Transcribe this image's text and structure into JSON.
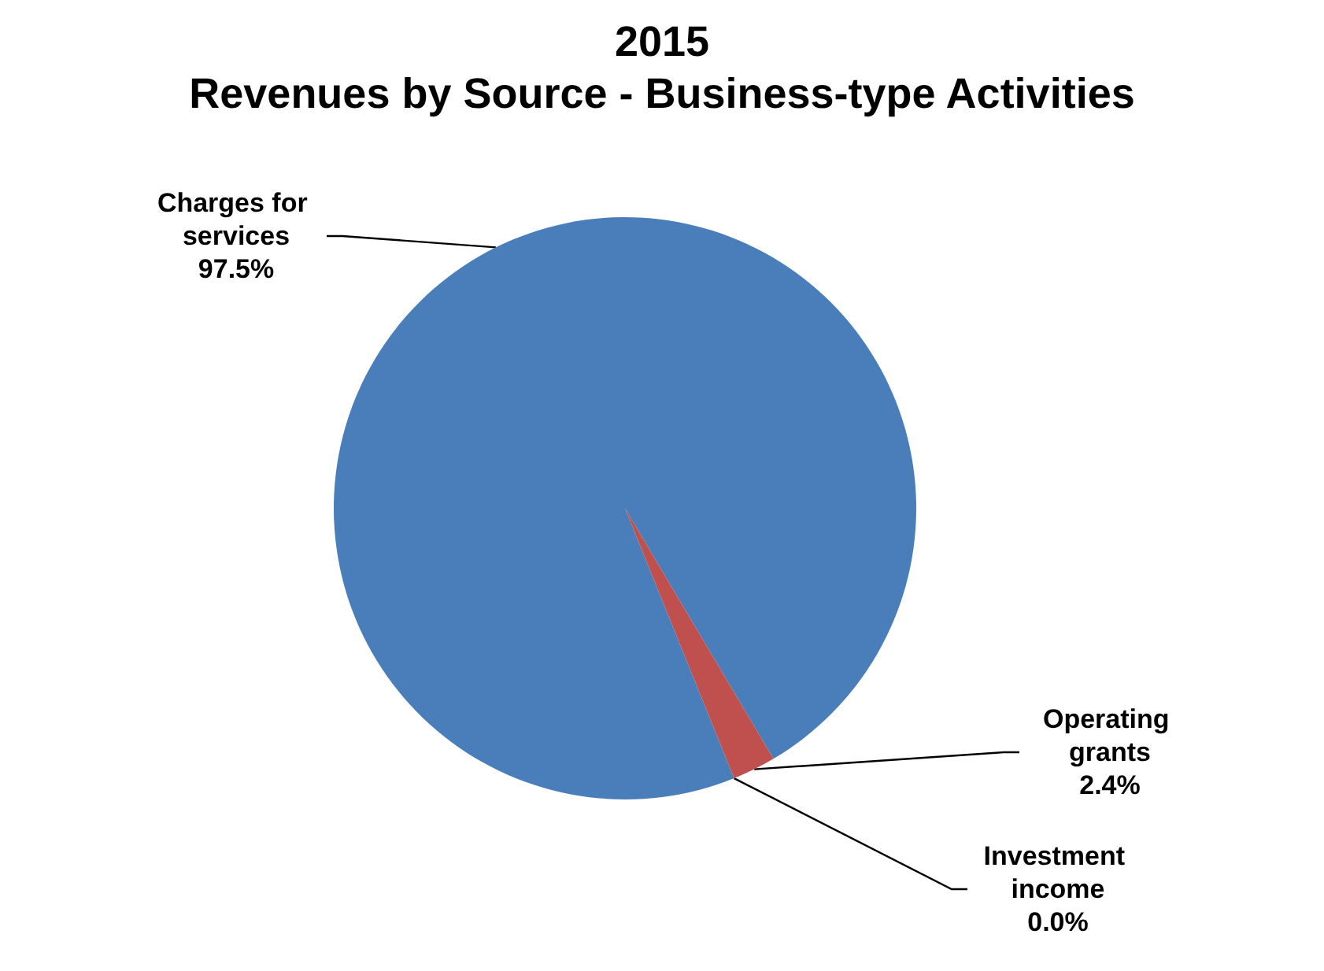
{
  "chart_data": {
    "type": "pie",
    "title": "2015",
    "subtitle": "Revenues by Source - Business-type Activities",
    "categories": [
      "Charges for services",
      "Operating grants",
      "Investment income"
    ],
    "values": [
      97.5,
      2.4,
      0.0
    ],
    "value_labels": [
      "97.5%",
      "2.4%",
      "0.0%"
    ],
    "colors": [
      "#4a7ebb",
      "#c0504d",
      "#9bbb59"
    ],
    "legend": false
  }
}
